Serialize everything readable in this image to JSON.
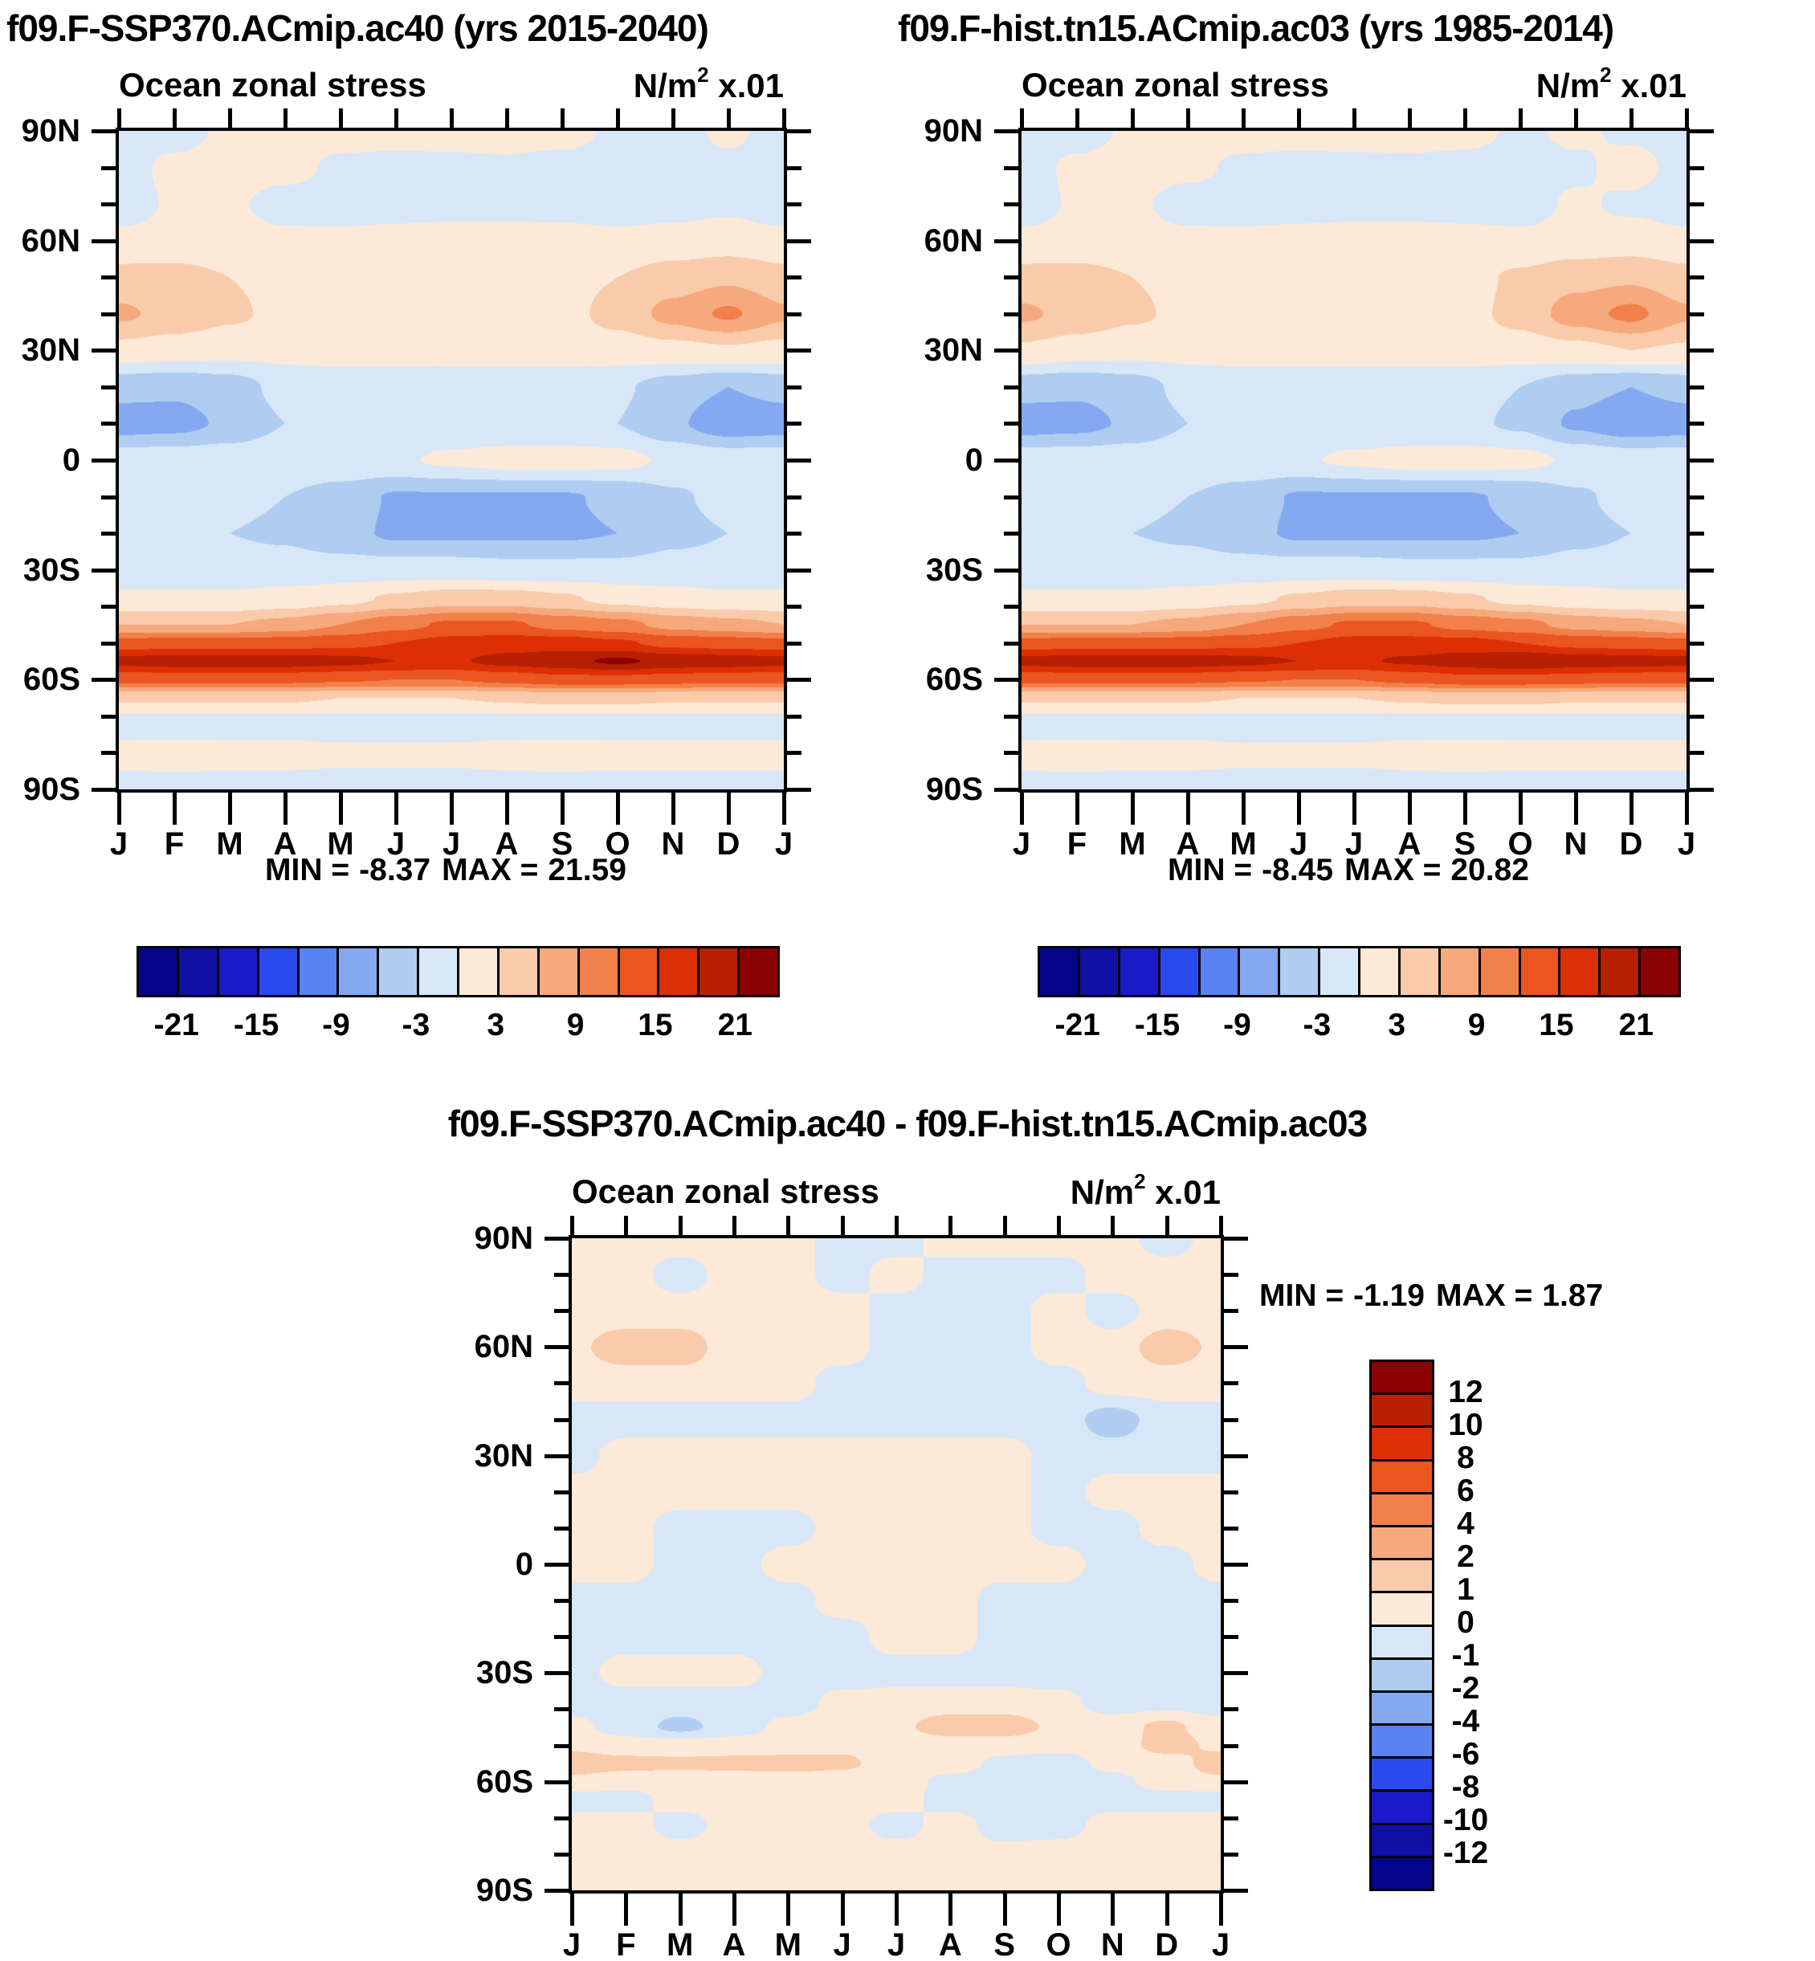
{
  "units": {
    "base": "N/m",
    "exp": "2",
    "suffix": " x.01"
  },
  "palette": [
    "#05058C",
    "#1010A5",
    "#1A1AC8",
    "#2B4AEE",
    "#5A82F2",
    "#84A9F0",
    "#AFCCF1",
    "#D8E7F7",
    "#FCE9D8",
    "#F9CBAA",
    "#F6A97C",
    "#F2804B",
    "#EA5520",
    "#DC2F06",
    "#B62000",
    "#8B0000"
  ],
  "chart_data": [
    {
      "type": "heatmap",
      "id": "panel-a",
      "title": "f09.F-SSP370.ACmip.ac40 (yrs 2015-2040)",
      "subtitle": "Ocean zonal stress",
      "months": [
        "J",
        "F",
        "M",
        "A",
        "M",
        "J",
        "J",
        "A",
        "S",
        "O",
        "N",
        "D",
        "J"
      ],
      "lat_labels": [
        "90N",
        "60N",
        "30N",
        "0",
        "30S",
        "60S",
        "90S"
      ],
      "lats": [
        90,
        80,
        70,
        60,
        50,
        40,
        30,
        20,
        10,
        0,
        -10,
        -20,
        -30,
        -38,
        -45,
        -50,
        -55,
        -60,
        -65,
        -72,
        -80,
        -90
      ],
      "levels": [
        -21,
        -18,
        -15,
        -12,
        -9,
        -6,
        -3,
        0,
        3,
        6,
        9,
        12,
        15,
        18,
        21
      ],
      "colorbar_labels": [
        "-21",
        "-15",
        "-9",
        "-3",
        "3",
        "9",
        "15",
        "21"
      ],
      "stats": {
        "min_label": "MIN =",
        "min": "-8.37",
        "max_label": "MAX =",
        "max": "21.59"
      },
      "values": [
        [
          -1,
          -1,
          0.5,
          1,
          1,
          1.2,
          1.2,
          1.2,
          1,
          -0.5,
          -1,
          0.5,
          -1
        ],
        [
          -1,
          0.6,
          1.2,
          0.8,
          -0.5,
          -1,
          -0.8,
          -0.5,
          -1,
          -1,
          -0.5,
          -0.6,
          -1
        ],
        [
          -1.5,
          0.4,
          0.4,
          -1,
          -1.2,
          -1.2,
          -1,
          -1,
          -1,
          -1.2,
          -1,
          -0.5,
          -1.5
        ],
        [
          0.8,
          1,
          1,
          0.6,
          0.6,
          1,
          1.2,
          1.2,
          1,
          0.6,
          1,
          1.4,
          0.8
        ],
        [
          4,
          4,
          3,
          2,
          1.5,
          1.5,
          1.5,
          1.5,
          2,
          3,
          4.5,
          5.5,
          4
        ],
        [
          6.5,
          5,
          3.5,
          2.2,
          1.5,
          1.4,
          1.4,
          1.5,
          2,
          4,
          7,
          9.5,
          6.5
        ],
        [
          2,
          1.5,
          1,
          1,
          1,
          1,
          1.4,
          1.5,
          1.5,
          1.5,
          2,
          2.5,
          2
        ],
        [
          -5,
          -5.5,
          -4.5,
          -2,
          -1.5,
          -1.6,
          -2,
          -2,
          -2,
          -2.5,
          -4.5,
          -6,
          -5
        ],
        [
          -7.5,
          -7,
          -5.5,
          -3,
          -2,
          -2,
          -2.4,
          -2.4,
          -2.4,
          -3,
          -5.5,
          -8,
          -7.5
        ],
        [
          -1.2,
          -1.2,
          -1,
          -0.6,
          -0.5,
          -0.4,
          0.6,
          1.2,
          1.3,
          1,
          -0.5,
          -1.2,
          -1.2
        ],
        [
          -2,
          -2,
          -2.2,
          -3,
          -4.5,
          -6.3,
          -6.3,
          -6.3,
          -6.3,
          -5.5,
          -3.5,
          -2,
          -2
        ],
        [
          -3,
          -3,
          -3,
          -3.5,
          -5,
          -6.5,
          -6.5,
          -6.5,
          -6.5,
          -6,
          -4,
          -3,
          -3
        ],
        [
          -1.6,
          -1.6,
          -1.6,
          -1.6,
          -1.6,
          -1.6,
          -1.6,
          -2,
          -2,
          -2,
          -1.6,
          -1.6,
          -1.6
        ],
        [
          0.5,
          0.5,
          0.5,
          1,
          2,
          3.5,
          4.5,
          4.5,
          3.5,
          2,
          1,
          0.5,
          0.5
        ],
        [
          6,
          6,
          6,
          7,
          9,
          11,
          12.5,
          12.5,
          11,
          10,
          8,
          7,
          6
        ],
        [
          13,
          13.5,
          13.5,
          13.5,
          14,
          15,
          16,
          16.5,
          16.5,
          15.5,
          14,
          13.5,
          13
        ],
        [
          19,
          19.6,
          19.6,
          19.6,
          19,
          18,
          17.6,
          19,
          20,
          21.6,
          20,
          19.6,
          19
        ],
        [
          13,
          13,
          13,
          13,
          12.5,
          12,
          12,
          13,
          14,
          14,
          13.5,
          13,
          13
        ],
        [
          3.5,
          3.5,
          3.5,
          3.5,
          3,
          3,
          3,
          3.5,
          4,
          4,
          3.5,
          3.5,
          3.5
        ],
        [
          -1.6,
          -1.6,
          -1.6,
          -1.6,
          -1.6,
          -1.6,
          -1.6,
          -1.6,
          -1.6,
          -1.6,
          -1.6,
          -1.6,
          -1.6
        ],
        [
          1,
          1.2,
          1,
          1,
          0.6,
          0.6,
          0.6,
          1,
          1.2,
          1,
          1,
          1,
          1
        ],
        [
          -1,
          -1,
          -1,
          -1,
          -1,
          -1,
          -1,
          -1,
          -1,
          -1,
          -1,
          -1,
          -1
        ]
      ]
    },
    {
      "type": "heatmap",
      "id": "panel-b",
      "title": "f09.F-hist.tn15.ACmip.ac03 (yrs 1985-2014)",
      "subtitle": "Ocean zonal stress",
      "months": [
        "J",
        "F",
        "M",
        "A",
        "M",
        "J",
        "J",
        "A",
        "S",
        "O",
        "N",
        "D",
        "J"
      ],
      "lat_labels": [
        "90N",
        "60N",
        "30N",
        "0",
        "30S",
        "60S",
        "90S"
      ],
      "lats": [
        90,
        80,
        70,
        60,
        50,
        40,
        30,
        20,
        10,
        0,
        -10,
        -20,
        -30,
        -38,
        -45,
        -50,
        -55,
        -60,
        -65,
        -72,
        -80,
        -90
      ],
      "levels": [
        -21,
        -18,
        -15,
        -12,
        -9,
        -6,
        -3,
        0,
        3,
        6,
        9,
        12,
        15,
        18,
        21
      ],
      "colorbar_labels": [
        "-21",
        "-15",
        "-9",
        "-3",
        "3",
        "9",
        "15",
        "21"
      ],
      "stats": {
        "min_label": "MIN =",
        "min": "-8.45",
        "max_label": "MAX =",
        "max": "20.82"
      },
      "values": [
        [
          -1,
          -1,
          0.4,
          1,
          1,
          1.2,
          1.2,
          1,
          1,
          -0.5,
          0.5,
          -0.5,
          -1
        ],
        [
          -1,
          0.5,
          1,
          0.6,
          -0.5,
          -1,
          -0.8,
          -0.5,
          -1,
          -1,
          -0.5,
          1,
          -1
        ],
        [
          -1.5,
          0.4,
          0.4,
          -1,
          -1.2,
          -1.2,
          -1,
          -1,
          -1.2,
          -1.2,
          0.4,
          -0.5,
          -1.5
        ],
        [
          0.8,
          1,
          1,
          0.6,
          0.6,
          1,
          1.2,
          1.2,
          1,
          0.6,
          1,
          1.4,
          0.8
        ],
        [
          4,
          4,
          3,
          2,
          1.5,
          1.5,
          1.5,
          1.5,
          2,
          3.5,
          5,
          5.5,
          4
        ],
        [
          6.5,
          5,
          3.5,
          2.2,
          1.5,
          1.4,
          1.4,
          1.5,
          2,
          4,
          7.5,
          9.8,
          6.5
        ],
        [
          2.5,
          1.5,
          1,
          1,
          1,
          1,
          1.4,
          1.5,
          1.5,
          1.5,
          2,
          3,
          2.5
        ],
        [
          -5,
          -5.5,
          -4.5,
          -2,
          -1.5,
          -1.6,
          -2,
          -2,
          -2,
          -3,
          -5,
          -6,
          -5
        ],
        [
          -7.5,
          -7,
          -5.5,
          -3,
          -2,
          -2,
          -2.4,
          -2.4,
          -2.4,
          -3.5,
          -6.5,
          -8.2,
          -7.5
        ],
        [
          -1.2,
          -1.2,
          -1,
          -0.6,
          -0.5,
          -0.4,
          0.6,
          1.2,
          1.3,
          1,
          -0.5,
          -1.2,
          -1.2
        ],
        [
          -2,
          -2,
          -2.2,
          -3,
          -4.5,
          -6.3,
          -6.3,
          -6.3,
          -6.3,
          -5.5,
          -3.5,
          -2,
          -2
        ],
        [
          -3,
          -3,
          -3,
          -3.5,
          -5,
          -6.5,
          -6.5,
          -6.5,
          -6.5,
          -6,
          -4,
          -3,
          -3
        ],
        [
          -1.6,
          -1.6,
          -1.6,
          -1.6,
          -1.6,
          -1.6,
          -1.6,
          -2,
          -2,
          -2,
          -1.6,
          -1.6,
          -1.6
        ],
        [
          0.5,
          0.5,
          0.5,
          1,
          2,
          3.5,
          4.5,
          4.5,
          3.5,
          2,
          1,
          0.5,
          0.5
        ],
        [
          6,
          6,
          6,
          7,
          9,
          11,
          12.5,
          12.5,
          11,
          10,
          8,
          7,
          6
        ],
        [
          13,
          13.5,
          13.5,
          13.5,
          14,
          15,
          16,
          16,
          16,
          15,
          14,
          13.5,
          13
        ],
        [
          19,
          19.6,
          19.6,
          19.6,
          19,
          18,
          17.5,
          18.5,
          19.6,
          20.7,
          19.8,
          19.4,
          19
        ],
        [
          13,
          13,
          13,
          13,
          12.5,
          12,
          12,
          13,
          14,
          14,
          13.5,
          13,
          13
        ],
        [
          3.5,
          3.5,
          3.5,
          3.5,
          3,
          3,
          3,
          3.5,
          4,
          4,
          3.5,
          3.5,
          3.5
        ],
        [
          -1.6,
          -1.6,
          -1.6,
          -1.6,
          -1.6,
          -1.6,
          -1.6,
          -1.6,
          -1.6,
          -1.6,
          -1.6,
          -1.6,
          -1.6
        ],
        [
          1,
          1.2,
          1,
          1,
          0.6,
          0.6,
          0.6,
          1,
          1.2,
          1,
          1,
          1,
          1
        ],
        [
          -1,
          -1,
          -1,
          -1,
          -1,
          -1,
          -1,
          -1,
          -1,
          -1,
          -1,
          -1,
          -1
        ]
      ]
    },
    {
      "type": "heatmap",
      "id": "panel-diff",
      "title": "f09.F-SSP370.ACmip.ac40 - f09.F-hist.tn15.ACmip.ac03",
      "subtitle": "Ocean zonal stress",
      "months": [
        "J",
        "F",
        "M",
        "A",
        "M",
        "J",
        "J",
        "A",
        "S",
        "O",
        "N",
        "D",
        "J"
      ],
      "lat_labels": [
        "90N",
        "60N",
        "30N",
        "0",
        "30S",
        "60S",
        "90S"
      ],
      "lats": [
        90,
        80,
        70,
        60,
        50,
        40,
        30,
        20,
        10,
        0,
        -10,
        -20,
        -30,
        -38,
        -45,
        -50,
        -55,
        -60,
        -65,
        -72,
        -80,
        -90
      ],
      "levels": [
        -12,
        -10,
        -8,
        -6,
        -4,
        -2,
        -1,
        0,
        1,
        2,
        4,
        6,
        8,
        10,
        12
      ],
      "colorbar_labels": [
        "12",
        "10",
        "8",
        "6",
        "4",
        "2",
        "1",
        "0",
        "-1",
        "-2",
        "-4",
        "-6",
        "-8",
        "-10",
        "-12"
      ],
      "stats": {
        "min_label": "MIN =",
        "min": "-1.19",
        "max_label": "MAX =",
        "max": "1.87"
      },
      "values": [
        [
          0.5,
          0.5,
          0.5,
          0.5,
          0.5,
          -0.5,
          -0.5,
          0.5,
          0.5,
          0.5,
          0.5,
          -0.5,
          0.5
        ],
        [
          0.5,
          0.5,
          -0.5,
          0.5,
          0.5,
          -0.5,
          0.5,
          -0.5,
          -0.5,
          -0.5,
          0.5,
          0.5,
          0.5
        ],
        [
          0.5,
          0.5,
          0.5,
          0.5,
          0.5,
          0.5,
          -0.5,
          -0.5,
          -0.5,
          0.5,
          -0.5,
          0.5,
          0.5
        ],
        [
          0.8,
          1.5,
          1.5,
          0.5,
          0.5,
          0.5,
          -0.5,
          -0.5,
          -0.5,
          0.5,
          0.5,
          1.5,
          0.8
        ],
        [
          0.5,
          0.5,
          0.5,
          0.5,
          0.5,
          -0.5,
          -0.5,
          -0.5,
          -0.5,
          -0.5,
          0.5,
          0.5,
          0.5
        ],
        [
          -0.5,
          -0.5,
          -0.5,
          -0.5,
          -0.5,
          -0.5,
          -0.5,
          -0.5,
          -0.5,
          -0.5,
          -1.5,
          -0.5,
          -0.5
        ],
        [
          -0.5,
          0.5,
          0.5,
          0.5,
          0.5,
          0.5,
          0.5,
          0.5,
          0.5,
          -0.5,
          -0.5,
          -0.5,
          -0.5
        ],
        [
          0.5,
          0.5,
          0.5,
          0.5,
          0.5,
          0.5,
          0.5,
          0.5,
          0.5,
          -0.5,
          0.5,
          0.5,
          0.5
        ],
        [
          0.5,
          0.5,
          -0.5,
          -0.5,
          -0.5,
          0.5,
          0.5,
          0.5,
          0.5,
          -0.5,
          -0.5,
          0.5,
          0.5
        ],
        [
          0.5,
          0.5,
          -0.5,
          -0.5,
          0.5,
          0.5,
          0.5,
          0.5,
          0.5,
          0.5,
          -0.5,
          -0.5,
          0.5
        ],
        [
          -0.5,
          -0.5,
          -0.5,
          -0.5,
          -0.5,
          0.5,
          0.5,
          0.5,
          -0.5,
          -0.5,
          -0.5,
          -0.5,
          -0.5
        ],
        [
          -0.5,
          -0.5,
          -0.5,
          -0.5,
          -0.5,
          -0.5,
          0.5,
          0.5,
          -0.5,
          -0.5,
          -0.5,
          -0.5,
          -0.5
        ],
        [
          -0.5,
          0.5,
          0.5,
          0.5,
          -0.5,
          -0.5,
          -0.5,
          -0.5,
          -0.5,
          -0.5,
          -0.5,
          -0.5,
          -0.5
        ],
        [
          -0.5,
          -0.5,
          -0.5,
          -0.5,
          -0.5,
          0.3,
          0.5,
          0.5,
          0.5,
          0.3,
          -0.5,
          -0.5,
          -0.5
        ],
        [
          0.3,
          -0.5,
          -1.3,
          -0.5,
          0.3,
          0.5,
          0.8,
          1.5,
          1.5,
          0.8,
          0.5,
          1.3,
          0.3
        ],
        [
          0.8,
          0.5,
          0.5,
          0.5,
          0.5,
          0.8,
          0.5,
          0.5,
          0.5,
          0.3,
          0.5,
          1.4,
          0.8
        ],
        [
          1.5,
          1.3,
          1.2,
          1.3,
          1.4,
          1.2,
          0.5,
          0.5,
          -0.3,
          -0.5,
          0.3,
          0.5,
          1.5
        ],
        [
          0.8,
          0.5,
          0.5,
          0.5,
          0.5,
          0.5,
          0.5,
          -0.3,
          -0.5,
          -0.5,
          -0.3,
          0.5,
          0.8
        ],
        [
          -0.5,
          -0.5,
          0.5,
          0.5,
          0.5,
          0.5,
          0.5,
          -0.5,
          -0.5,
          -0.5,
          -0.5,
          -0.5,
          -0.5
        ],
        [
          0.5,
          0.5,
          -0.5,
          0.5,
          0.5,
          0.5,
          -0.5,
          0.5,
          -0.5,
          -0.5,
          0.5,
          0.5,
          0.5
        ],
        [
          0.5,
          0.5,
          0.5,
          0.5,
          0.5,
          0.5,
          0.5,
          0.5,
          0.3,
          0.5,
          0.5,
          0.5,
          0.5
        ],
        [
          0.5,
          0.5,
          0.5,
          0.5,
          0.5,
          0.5,
          0.5,
          0.5,
          0.5,
          0.5,
          0.5,
          0.5,
          0.5
        ]
      ]
    }
  ]
}
